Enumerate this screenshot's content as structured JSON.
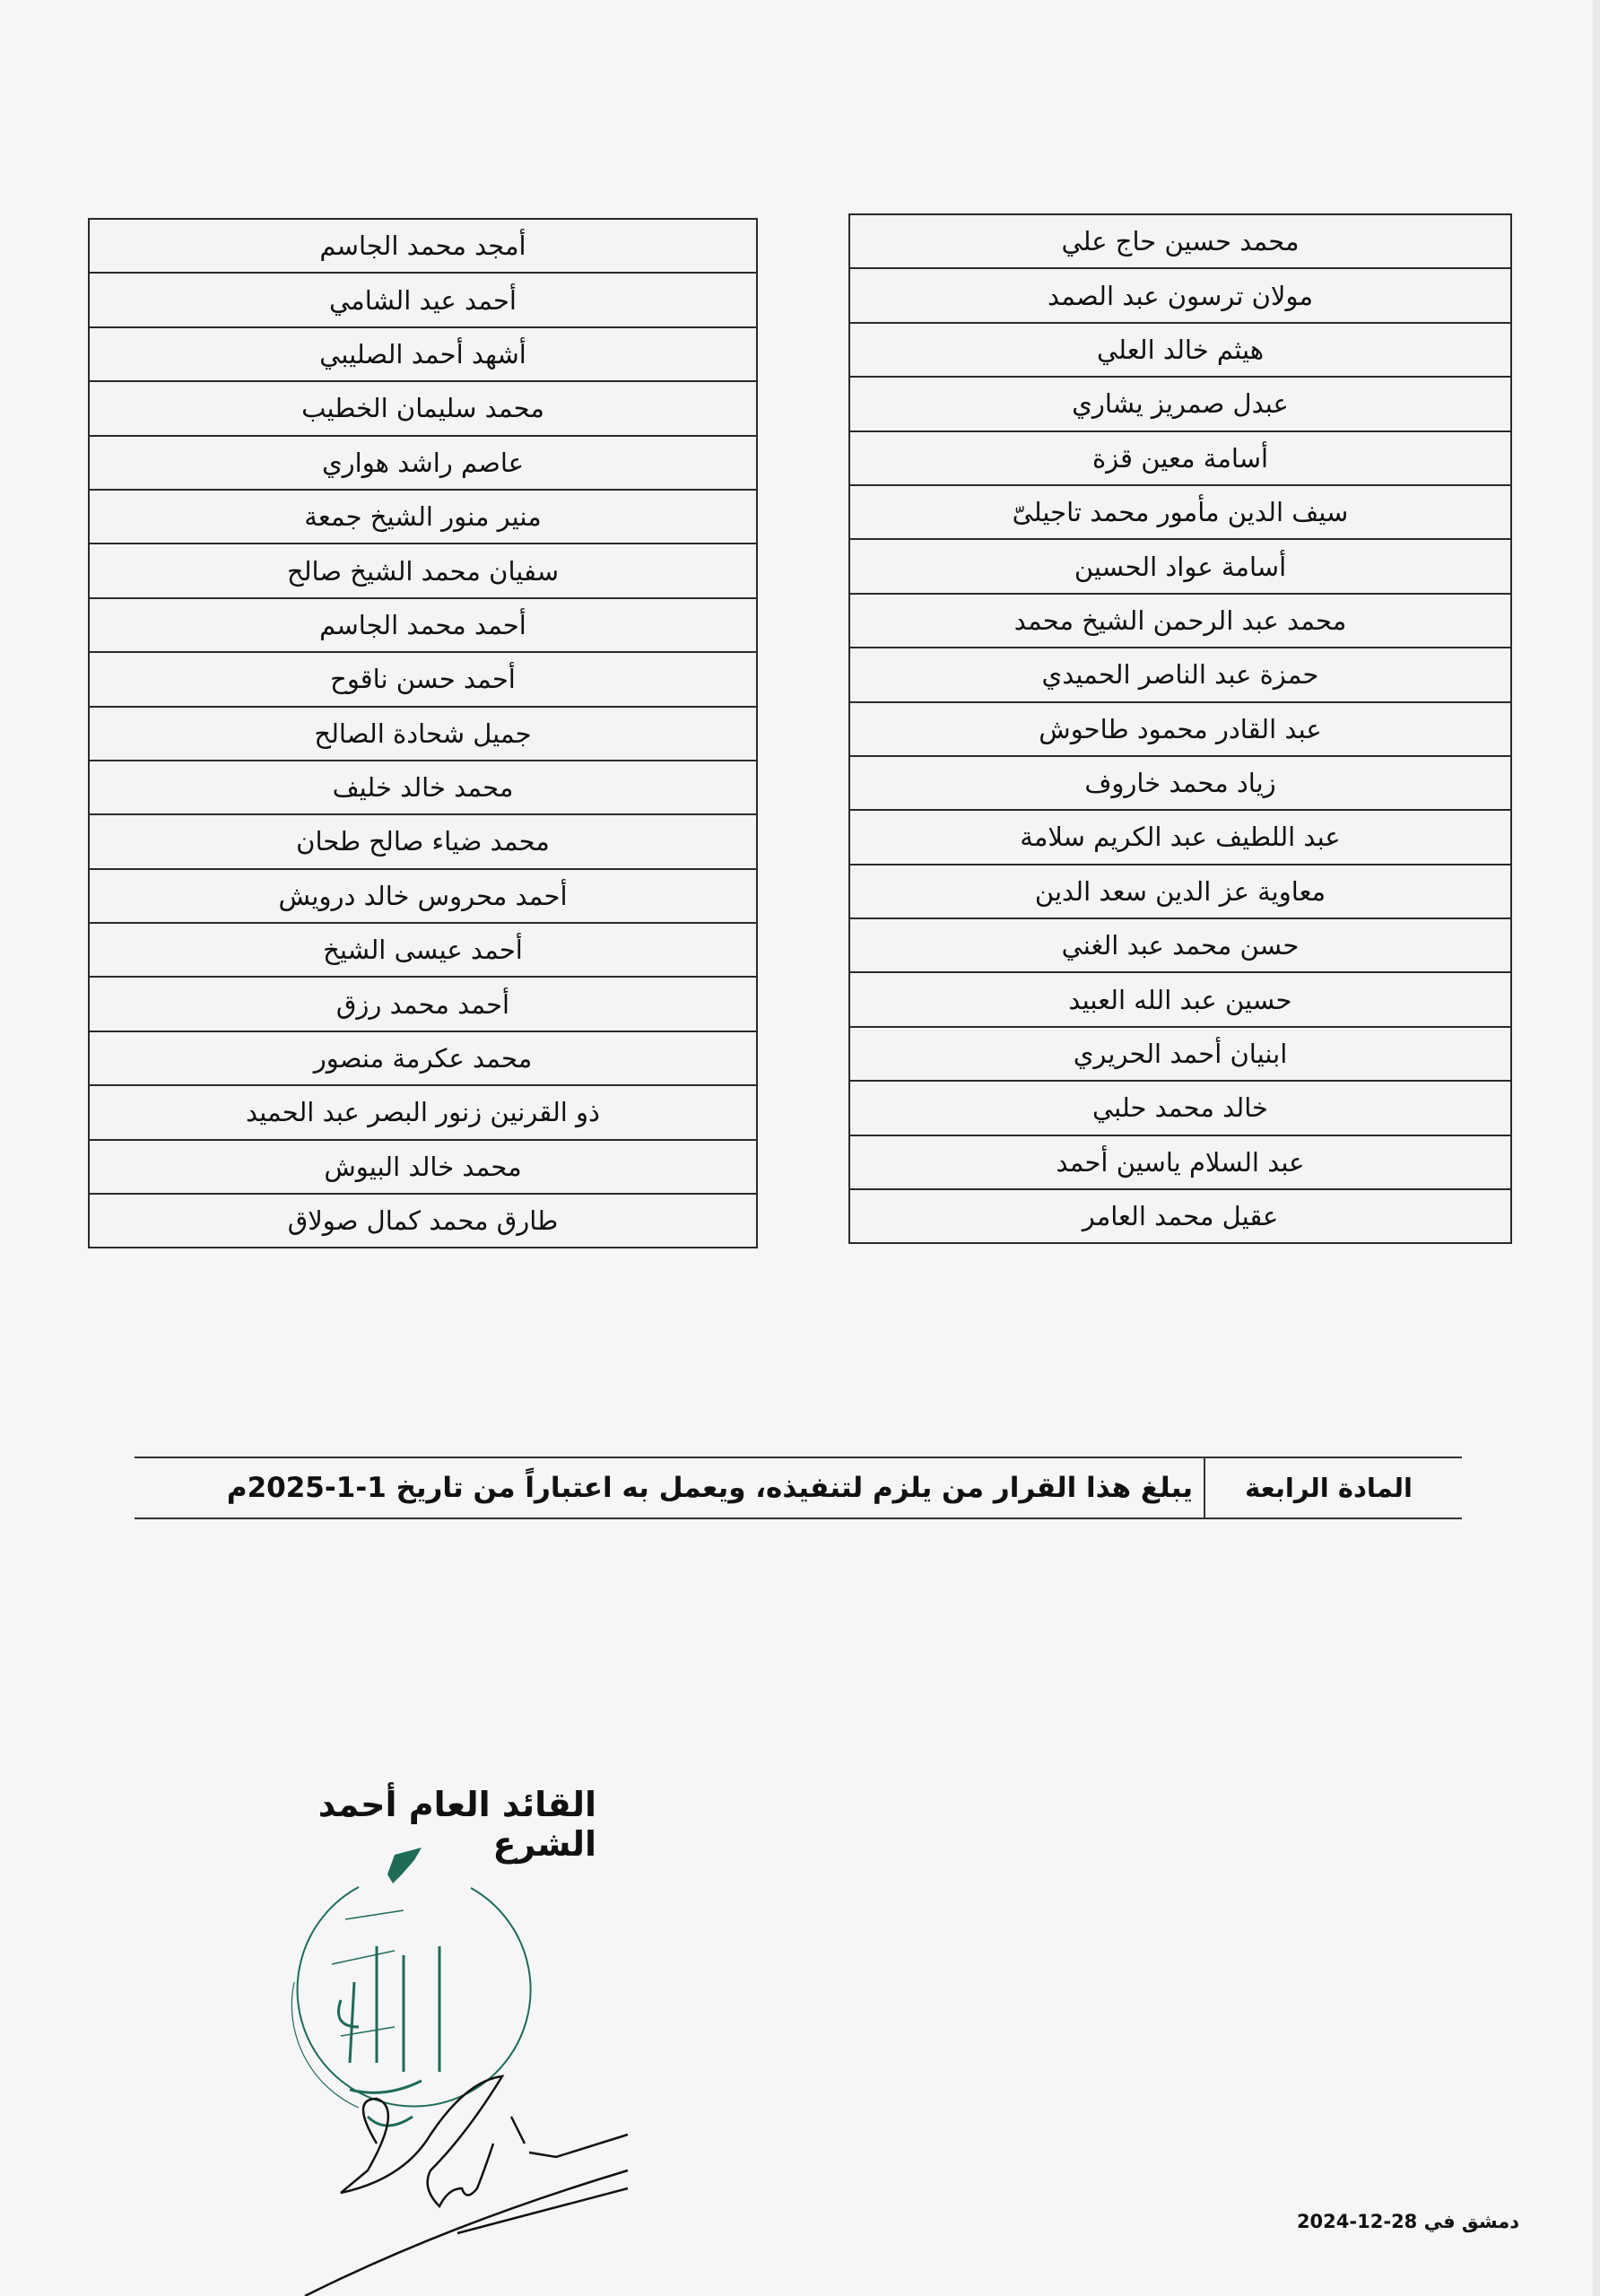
{
  "table_right": [
    "محمد حسين حاج علي",
    "مولان ترسون عبد الصمد",
    "هيثم خالد العلي",
    "عبدل صمريز يشاري",
    "أسامة معين قزة",
    "سيف الدين مأمور محمد تاجيلىّ",
    "أسامة عواد الحسين",
    "محمد عبد الرحمن الشيخ محمد",
    "حمزة عبد الناصر الحميدي",
    "عبد القادر محمود طاحوش",
    "زياد محمد خاروف",
    "عبد اللطيف عبد الكريم سلامة",
    "معاوية عز الدين سعد الدين",
    "حسن محمد عبد الغني",
    "حسين عبد الله العبيد",
    "ابنيان أحمد الحريري",
    "خالد محمد حلبي",
    "عبد السلام ياسين أحمد",
    "عقيل محمد العامر"
  ],
  "table_left": [
    "أمجد محمد الجاسم",
    "أحمد عيد الشامي",
    "أشهد أحمد الصليبي",
    "محمد سليمان الخطيب",
    "عاصم راشد هواري",
    "منير منور الشيخ جمعة",
    "سفيان محمد الشيخ صالح",
    "أحمد محمد الجاسم",
    "أحمد حسن ناقوح",
    "جميل شحادة الصالح",
    "محمد خالد خليف",
    "محمد ضياء صالح طحان",
    "أحمد محروس خالد درويش",
    "أحمد عيسى الشيخ",
    "أحمد محمد رزق",
    "محمد عكرمة منصور",
    "ذو القرنين زنور البصر عبد الحميد",
    "محمد خالد البيوش",
    "طارق محمد كمال صولاق"
  ],
  "article": {
    "label": "المادة الرابعة",
    "text": "يبلغ هذا القرار من يلزم لتنفيذه، ويعمل به اعتباراً من تاريخ 1-1-2025م"
  },
  "signature": {
    "title": "القائد العام أحمد الشرع",
    "stamp_text": [
      "القيادة العامة",
      "سوريا"
    ],
    "stamp_color": "#1f6b55"
  },
  "date_line": "دمشق في 28-12-2024"
}
